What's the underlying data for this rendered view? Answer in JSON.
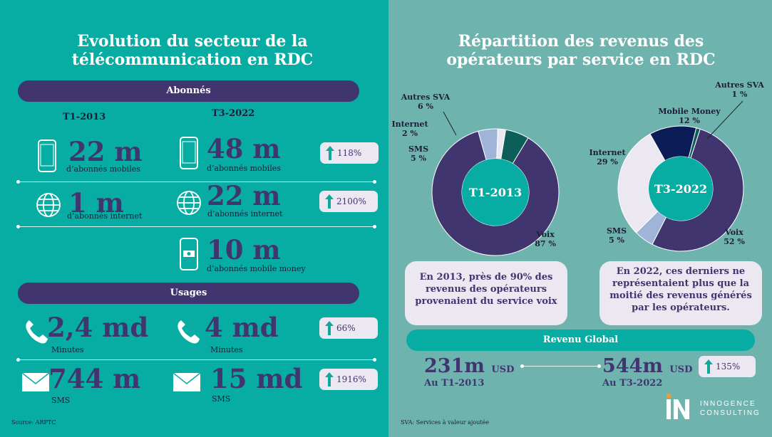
{
  "left": {
    "title_line1": "Evolution du secteur de la",
    "title_line2": "télécommunication en RDC",
    "abonnes_header": "Abonnés",
    "col1": "T1-2013",
    "col2": "T3-2022",
    "mobile": {
      "v1": "22 m",
      "v2": "48 m",
      "label": "d’abonnés mobiles",
      "growth": "118%"
    },
    "internet": {
      "v1": "1 m",
      "v2": "22 m",
      "label": "d’abonnés internet",
      "growth": "2100%"
    },
    "money": {
      "v2": "10 m",
      "label": "d’abonnés mobile money"
    },
    "usages_header": "Usages",
    "minutes": {
      "v1": "2,4 md",
      "v2": "4 md",
      "label": "Minutes",
      "growth": "66%"
    },
    "sms": {
      "v1": "744 m",
      "v2": "15 md",
      "label": "SMS",
      "growth": "1916%"
    },
    "source": "Source: ARPTC"
  },
  "right": {
    "title_line1": "Répartition des revenus des",
    "title_line2": "opérateurs par service en RDC",
    "box1": "En 2013, près de 90% des revenus des opérateurs provenaient du service voix",
    "box2": "En 2022, ces derniers ne représentaient plus que la moitié des revenus générés par les opérateurs.",
    "revenu_header": "Revenu Global",
    "rev1": {
      "value": "231m",
      "unit": "USD",
      "period": "Au T1-2013"
    },
    "rev2": {
      "value": "544m",
      "unit": "USD",
      "period": "Au T3-2022",
      "growth": "135%"
    },
    "footnote": "SVA: Services à valeur ajoutée",
    "logo_line1": "INNOGENCE",
    "logo_line2": "CONSULTING"
  },
  "chart_data": [
    {
      "type": "pie",
      "center_label": "T1-2013",
      "slices": [
        {
          "name": "Voix",
          "value": 87,
          "label": "87 %",
          "color": "#41356F"
        },
        {
          "name": "SMS",
          "value": 5,
          "label": "5 %",
          "color": "#9FB4D6"
        },
        {
          "name": "Internet",
          "value": 2,
          "label": "2 %",
          "color": "#ECE8F2"
        },
        {
          "name": "Autres SVA",
          "value": 6,
          "label": "6 %",
          "color": "#0B5E5A"
        }
      ]
    },
    {
      "type": "pie",
      "center_label": "T3-2022",
      "slices": [
        {
          "name": "Voix",
          "value": 52,
          "label": "52 %",
          "color": "#41356F"
        },
        {
          "name": "SMS",
          "value": 5,
          "label": "5 %",
          "color": "#9FB4D6"
        },
        {
          "name": "Internet",
          "value": 29,
          "label": "29 %",
          "color": "#ECE8F2"
        },
        {
          "name": "Mobile Money",
          "value": 12,
          "label": "12 %",
          "color": "#0C1C57"
        },
        {
          "name": "Autres SVA",
          "value": 1,
          "label": "1 %",
          "color": "#0B5E5A"
        }
      ]
    }
  ]
}
